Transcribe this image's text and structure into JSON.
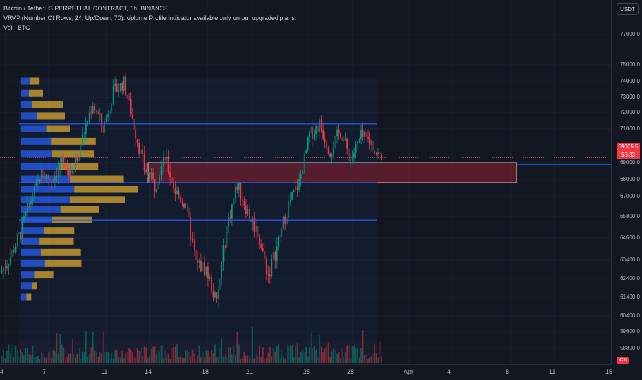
{
  "header": {
    "symbol_line": "Bitcoin / TetherUS PERPETUAL CONTRACT, 1h, BINANCE",
    "indicator_line": "VRVP (Number Of Rows, 24, Up/Down, 70): Volume Profile indicator available only on our upgraded plans.",
    "volume_line": "Vol · BTC"
  },
  "currency_button": "USDT",
  "last_price": {
    "price": "69065.5",
    "countdown": "56:33"
  },
  "volume_tag": "426",
  "price_axis_labels": [
    "77000.0",
    "75000.0",
    "74000.0",
    "73000.0",
    "72000.0",
    "71000.0",
    "69000.0",
    "68000.0",
    "67000.0",
    "65800.0",
    "64600.0",
    "63400.0",
    "62400.0",
    "61400.0",
    "60400.0",
    "59600.0",
    "58800.0"
  ],
  "time_axis_labels": [
    "4",
    "7",
    "11",
    "14",
    "18",
    "21",
    "25",
    "28",
    "Apr",
    "4",
    "8",
    "11",
    "15"
  ],
  "colors": {
    "background": "#131722",
    "up_candle": "#089981",
    "down_candle": "#f23645",
    "profile_up": "#2962ff",
    "profile_down": "#e8b12d",
    "level_line": "#2962ff",
    "zone_fill": "#7a1f2e"
  },
  "chart_data": {
    "type": "candlestick",
    "symbol": "Bitcoin / TetherUS PERPETUAL CONTRACT",
    "interval": "1h",
    "exchange": "BINANCE",
    "price_path": [
      [
        3,
        62700
      ],
      [
        4,
        63600
      ],
      [
        5,
        64900
      ],
      [
        6,
        66800
      ],
      [
        7,
        68300
      ],
      [
        8,
        68000
      ],
      [
        9,
        69000
      ],
      [
        10,
        68200
      ],
      [
        11,
        70500
      ],
      [
        12,
        72600
      ],
      [
        13,
        71000
      ],
      [
        14,
        73300
      ],
      [
        15,
        73900
      ],
      [
        16,
        71200
      ],
      [
        17,
        68700
      ],
      [
        18,
        67600
      ],
      [
        19,
        69300
      ],
      [
        20,
        67300
      ],
      [
        21,
        66500
      ],
      [
        22,
        63200
      ],
      [
        23,
        62900
      ],
      [
        24,
        61000
      ],
      [
        25,
        65200
      ],
      [
        26,
        67700
      ],
      [
        27,
        66100
      ],
      [
        28,
        64900
      ],
      [
        29,
        62600
      ],
      [
        30,
        64400
      ],
      [
        31,
        66500
      ],
      [
        32,
        67800
      ],
      [
        33,
        70600
      ],
      [
        34,
        71300
      ],
      [
        35,
        69700
      ],
      [
        36,
        70900
      ],
      [
        37,
        69200
      ],
      [
        38,
        70500
      ],
      [
        39,
        70200
      ],
      [
        40,
        69100
      ]
    ],
    "volume_profile": [
      {
        "price": 74000,
        "up": 0.08,
        "down": 0.08
      },
      {
        "price": 73250,
        "up": 0.07,
        "down": 0.12
      },
      {
        "price": 72500,
        "up": 0.1,
        "down": 0.26
      },
      {
        "price": 71750,
        "up": 0.14,
        "down": 0.24
      },
      {
        "price": 71000,
        "up": 0.22,
        "down": 0.2
      },
      {
        "price": 70250,
        "up": 0.26,
        "down": 0.38
      },
      {
        "price": 69500,
        "up": 0.27,
        "down": 0.36
      },
      {
        "price": 68750,
        "up": 0.33,
        "down": 0.33
      },
      {
        "price": 68000,
        "up": 0.42,
        "down": 0.46
      },
      {
        "price": 67400,
        "up": 0.46,
        "down": 0.54
      },
      {
        "price": 66800,
        "up": 0.42,
        "down": 0.47
      },
      {
        "price": 66200,
        "up": 0.34,
        "down": 0.33
      },
      {
        "price": 65600,
        "up": 0.27,
        "down": 0.34
      },
      {
        "price": 65000,
        "up": 0.2,
        "down": 0.26
      },
      {
        "price": 64400,
        "up": 0.16,
        "down": 0.29
      },
      {
        "price": 63800,
        "up": 0.17,
        "down": 0.34
      },
      {
        "price": 63200,
        "up": 0.21,
        "down": 0.31
      },
      {
        "price": 62600,
        "up": 0.12,
        "down": 0.16
      },
      {
        "price": 62000,
        "up": 0.1,
        "down": 0.04
      },
      {
        "price": 61400,
        "up": 0.05,
        "down": 0.04
      }
    ],
    "horizontal_levels": [
      71300,
      67800,
      65600
    ],
    "zone": {
      "from_price": 67800,
      "to_price": 69000
    },
    "y_range": [
      58400,
      78300
    ]
  }
}
